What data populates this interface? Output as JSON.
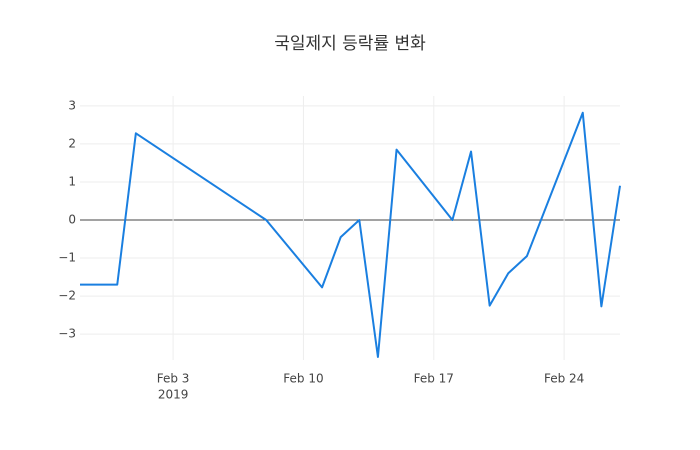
{
  "chart_data": {
    "type": "line",
    "title": "국일제지 등락률 변화",
    "x": [
      "2019-01-29",
      "2019-01-31",
      "2019-02-01",
      "2019-02-08",
      "2019-02-11",
      "2019-02-12",
      "2019-02-13",
      "2019-02-14",
      "2019-02-15",
      "2019-02-18",
      "2019-02-19",
      "2019-02-20",
      "2019-02-21",
      "2019-02-22",
      "2019-02-25",
      "2019-02-26",
      "2019-02-27"
    ],
    "values": [
      -1.7,
      -1.7,
      2.28,
      0,
      -1.77,
      -0.45,
      0,
      -3.6,
      1.85,
      0,
      1.8,
      -2.25,
      -1.4,
      -0.95,
      2.82,
      -2.27,
      0.9
    ],
    "color": "#1a7fe0",
    "xlim": [
      "2019-01-29",
      "2019-02-27"
    ],
    "xticks": [
      {
        "value": "2019-02-03",
        "label": "Feb 3"
      },
      {
        "value": "2019-02-10",
        "label": "Feb 10"
      },
      {
        "value": "2019-02-17",
        "label": "Feb 17"
      },
      {
        "value": "2019-02-24",
        "label": "Feb 24"
      }
    ],
    "x_year_label": "2019",
    "ylim": [
      -3.68,
      3.26
    ],
    "yticks": [
      {
        "value": -3,
        "label": "−3"
      },
      {
        "value": -2,
        "label": "−2"
      },
      {
        "value": -1,
        "label": "−1"
      },
      0,
      1,
      2,
      3
    ],
    "grid": true
  }
}
